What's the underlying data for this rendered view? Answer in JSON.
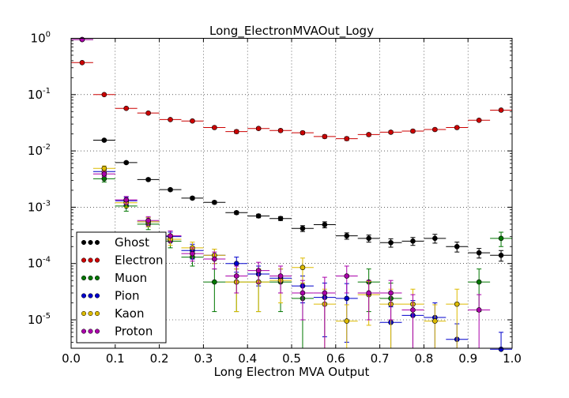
{
  "chart_data": {
    "type": "scatter",
    "title": "Long_ElectronMVAOut_Logy",
    "xlabel": "Long Electron MVA Output",
    "ylabel": "",
    "xlim": [
      0.0,
      1.0
    ],
    "ylim": [
      3e-06,
      1.0
    ],
    "yscale": "log",
    "grid": true,
    "legend_position": "lower-left",
    "xticks": [
      {
        "value": 0.0,
        "label": "0.0"
      },
      {
        "value": 0.1,
        "label": "0.1"
      },
      {
        "value": 0.2,
        "label": "0.2"
      },
      {
        "value": 0.3,
        "label": "0.3"
      },
      {
        "value": 0.4,
        "label": "0.4"
      },
      {
        "value": 0.5,
        "label": "0.5"
      },
      {
        "value": 0.6,
        "label": "0.6"
      },
      {
        "value": 0.7,
        "label": "0.7"
      },
      {
        "value": 0.8,
        "label": "0.8"
      },
      {
        "value": 0.9,
        "label": "0.9"
      },
      {
        "value": 1.0,
        "label": "1.0"
      }
    ],
    "yticks": [
      {
        "value": 1.0,
        "base": "10",
        "exp": "0"
      },
      {
        "value": 0.1,
        "base": "10",
        "exp": "-1"
      },
      {
        "value": 0.01,
        "base": "10",
        "exp": "-2"
      },
      {
        "value": 0.001,
        "base": "10",
        "exp": "-3"
      },
      {
        "value": 0.0001,
        "base": "10",
        "exp": "-4"
      },
      {
        "value": 1e-05,
        "base": "10",
        "exp": "-5"
      }
    ],
    "bin_width": 0.05,
    "series": [
      {
        "name": "Ghost",
        "color": "#000000",
        "points": [
          {
            "x": 0.025,
            "y": 0.95,
            "err": 0.02
          },
          {
            "x": 0.075,
            "y": 0.0155,
            "err": 0.0006
          },
          {
            "x": 0.125,
            "y": 0.0062,
            "err": 0.0003
          },
          {
            "x": 0.175,
            "y": 0.0031,
            "err": 0.00015
          },
          {
            "x": 0.225,
            "y": 0.00205,
            "err": 0.0001
          },
          {
            "x": 0.275,
            "y": 0.00145,
            "err": 8e-05
          },
          {
            "x": 0.325,
            "y": 0.00122,
            "err": 7e-05
          },
          {
            "x": 0.375,
            "y": 0.0008,
            "err": 5e-05
          },
          {
            "x": 0.425,
            "y": 0.0007,
            "err": 5e-05
          },
          {
            "x": 0.475,
            "y": 0.00063,
            "err": 5e-05
          },
          {
            "x": 0.525,
            "y": 0.00042,
            "err": 5e-05
          },
          {
            "x": 0.575,
            "y": 0.00049,
            "err": 6e-05
          },
          {
            "x": 0.625,
            "y": 0.00031,
            "err": 4e-05
          },
          {
            "x": 0.675,
            "y": 0.00028,
            "err": 4e-05
          },
          {
            "x": 0.725,
            "y": 0.000235,
            "err": 4e-05
          },
          {
            "x": 0.775,
            "y": 0.00025,
            "err": 4e-05
          },
          {
            "x": 0.825,
            "y": 0.00028,
            "err": 5e-05
          },
          {
            "x": 0.875,
            "y": 0.0002,
            "err": 4e-05
          },
          {
            "x": 0.925,
            "y": 0.000155,
            "err": 3e-05
          },
          {
            "x": 0.975,
            "y": 0.00014,
            "err": 3e-05
          }
        ]
      },
      {
        "name": "Electron",
        "color": "#cc0000",
        "points": [
          {
            "x": 0.025,
            "y": 0.37,
            "err": 0.01
          },
          {
            "x": 0.075,
            "y": 0.1,
            "err": 0.003
          },
          {
            "x": 0.125,
            "y": 0.057,
            "err": 0.002
          },
          {
            "x": 0.175,
            "y": 0.047,
            "err": 0.002
          },
          {
            "x": 0.225,
            "y": 0.036,
            "err": 0.0015
          },
          {
            "x": 0.275,
            "y": 0.034,
            "err": 0.0015
          },
          {
            "x": 0.325,
            "y": 0.026,
            "err": 0.0012
          },
          {
            "x": 0.375,
            "y": 0.022,
            "err": 0.0015
          },
          {
            "x": 0.425,
            "y": 0.025,
            "err": 0.0012
          },
          {
            "x": 0.475,
            "y": 0.023,
            "err": 0.0012
          },
          {
            "x": 0.525,
            "y": 0.021,
            "err": 0.0012
          },
          {
            "x": 0.575,
            "y": 0.018,
            "err": 0.0012
          },
          {
            "x": 0.625,
            "y": 0.0165,
            "err": 0.0012
          },
          {
            "x": 0.675,
            "y": 0.0195,
            "err": 0.0012
          },
          {
            "x": 0.725,
            "y": 0.0215,
            "err": 0.0012
          },
          {
            "x": 0.775,
            "y": 0.0225,
            "err": 0.0012
          },
          {
            "x": 0.825,
            "y": 0.024,
            "err": 0.0012
          },
          {
            "x": 0.875,
            "y": 0.026,
            "err": 0.0012
          },
          {
            "x": 0.925,
            "y": 0.035,
            "err": 0.0015
          },
          {
            "x": 0.975,
            "y": 0.053,
            "err": 0.002
          }
        ]
      },
      {
        "name": "Muon",
        "color": "#007700",
        "points": [
          {
            "x": 0.075,
            "y": 0.0032,
            "err": 0.0004
          },
          {
            "x": 0.125,
            "y": 0.00105,
            "err": 0.0002
          },
          {
            "x": 0.175,
            "y": 0.0005,
            "err": 0.0001
          },
          {
            "x": 0.225,
            "y": 0.00025,
            "err": 6e-05
          },
          {
            "x": 0.275,
            "y": 0.00013,
            "err": 4e-05
          },
          {
            "x": 0.325,
            "y": 4.7e-05,
            "err": 3.3e-05
          },
          {
            "x": 0.375,
            "y": 4.7e-05,
            "err": 3.3e-05
          },
          {
            "x": 0.425,
            "y": 4.7e-05,
            "err": 3.3e-05
          },
          {
            "x": 0.475,
            "y": 4.7e-05,
            "err": 3.3e-05
          },
          {
            "x": 0.525,
            "y": 2.4e-05,
            "err": 2.1e-05
          },
          {
            "x": 0.675,
            "y": 4.7e-05,
            "err": 3.3e-05
          },
          {
            "x": 0.725,
            "y": 2.4e-05,
            "err": 2.1e-05
          },
          {
            "x": 0.925,
            "y": 4.7e-05,
            "err": 3.3e-05
          },
          {
            "x": 0.975,
            "y": 0.00028,
            "err": 8e-05
          }
        ]
      },
      {
        "name": "Pion",
        "color": "#0000cc",
        "points": [
          {
            "x": 0.075,
            "y": 0.0043,
            "err": 0.0004
          },
          {
            "x": 0.125,
            "y": 0.0013,
            "err": 0.0002
          },
          {
            "x": 0.175,
            "y": 0.00055,
            "err": 0.0001
          },
          {
            "x": 0.225,
            "y": 0.0003,
            "err": 6e-05
          },
          {
            "x": 0.275,
            "y": 0.00017,
            "err": 5e-05
          },
          {
            "x": 0.325,
            "y": 0.00014,
            "err": 4e-05
          },
          {
            "x": 0.375,
            "y": 0.0001,
            "err": 3e-05
          },
          {
            "x": 0.425,
            "y": 6.5e-05,
            "err": 2.5e-05
          },
          {
            "x": 0.475,
            "y": 5.5e-05,
            "err": 2.5e-05
          },
          {
            "x": 0.525,
            "y": 4e-05,
            "err": 2e-05
          },
          {
            "x": 0.575,
            "y": 2.5e-05,
            "err": 2e-05
          },
          {
            "x": 0.625,
            "y": 2.4e-05,
            "err": 2e-05
          },
          {
            "x": 0.725,
            "y": 9e-06,
            "err": 8e-06
          },
          {
            "x": 0.775,
            "y": 1.2e-05,
            "err": 1e-05
          },
          {
            "x": 0.825,
            "y": 1.1e-05,
            "err": 9e-06
          },
          {
            "x": 0.875,
            "y": 4.5e-06,
            "err": 4e-06
          },
          {
            "x": 0.975,
            "y": 3e-06,
            "err": 3e-06
          }
        ]
      },
      {
        "name": "Kaon",
        "color": "#ddbb00",
        "points": [
          {
            "x": 0.075,
            "y": 0.0049,
            "err": 0.0005
          },
          {
            "x": 0.125,
            "y": 0.0012,
            "err": 0.0002
          },
          {
            "x": 0.175,
            "y": 0.00055,
            "err": 0.0001
          },
          {
            "x": 0.225,
            "y": 0.00027,
            "err": 6e-05
          },
          {
            "x": 0.275,
            "y": 0.00019,
            "err": 5e-05
          },
          {
            "x": 0.325,
            "y": 0.00014,
            "err": 4e-05
          },
          {
            "x": 0.375,
            "y": 4.7e-05,
            "err": 3.3e-05
          },
          {
            "x": 0.425,
            "y": 4.7e-05,
            "err": 3.3e-05
          },
          {
            "x": 0.475,
            "y": 5e-05,
            "err": 3e-05
          },
          {
            "x": 0.525,
            "y": 8.5e-05,
            "err": 4e-05
          },
          {
            "x": 0.575,
            "y": 1.9e-05,
            "err": 1.6e-05
          },
          {
            "x": 0.625,
            "y": 9.5e-06,
            "err": 9e-06
          },
          {
            "x": 0.675,
            "y": 2.8e-05,
            "err": 2e-05
          },
          {
            "x": 0.725,
            "y": 1.9e-05,
            "err": 1.6e-05
          },
          {
            "x": 0.775,
            "y": 1.9e-05,
            "err": 1.6e-05
          },
          {
            "x": 0.825,
            "y": 9.5e-06,
            "err": 9e-06
          },
          {
            "x": 0.875,
            "y": 1.9e-05,
            "err": 1.6e-05
          }
        ]
      },
      {
        "name": "Proton",
        "color": "#aa00aa",
        "points": [
          {
            "x": 0.025,
            "y": 0.95,
            "err": 0.02
          },
          {
            "x": 0.075,
            "y": 0.0039,
            "err": 0.0004
          },
          {
            "x": 0.125,
            "y": 0.00135,
            "err": 0.0002
          },
          {
            "x": 0.175,
            "y": 0.00058,
            "err": 0.0001
          },
          {
            "x": 0.225,
            "y": 0.00031,
            "err": 7e-05
          },
          {
            "x": 0.275,
            "y": 0.00015,
            "err": 4e-05
          },
          {
            "x": 0.325,
            "y": 0.00012,
            "err": 4e-05
          },
          {
            "x": 0.375,
            "y": 6e-05,
            "err": 3e-05
          },
          {
            "x": 0.425,
            "y": 7.5e-05,
            "err": 3e-05
          },
          {
            "x": 0.475,
            "y": 6e-05,
            "err": 3e-05
          },
          {
            "x": 0.525,
            "y": 3e-05,
            "err": 2e-05
          },
          {
            "x": 0.575,
            "y": 3e-05,
            "err": 2.7e-05
          },
          {
            "x": 0.625,
            "y": 6e-05,
            "err": 3e-05
          },
          {
            "x": 0.675,
            "y": 3e-05,
            "err": 2e-05
          },
          {
            "x": 0.725,
            "y": 3e-05,
            "err": 2e-05
          },
          {
            "x": 0.775,
            "y": 1.5e-05,
            "err": 1.3e-05
          },
          {
            "x": 0.925,
            "y": 1.5e-05,
            "err": 1.3e-05
          }
        ]
      }
    ]
  }
}
